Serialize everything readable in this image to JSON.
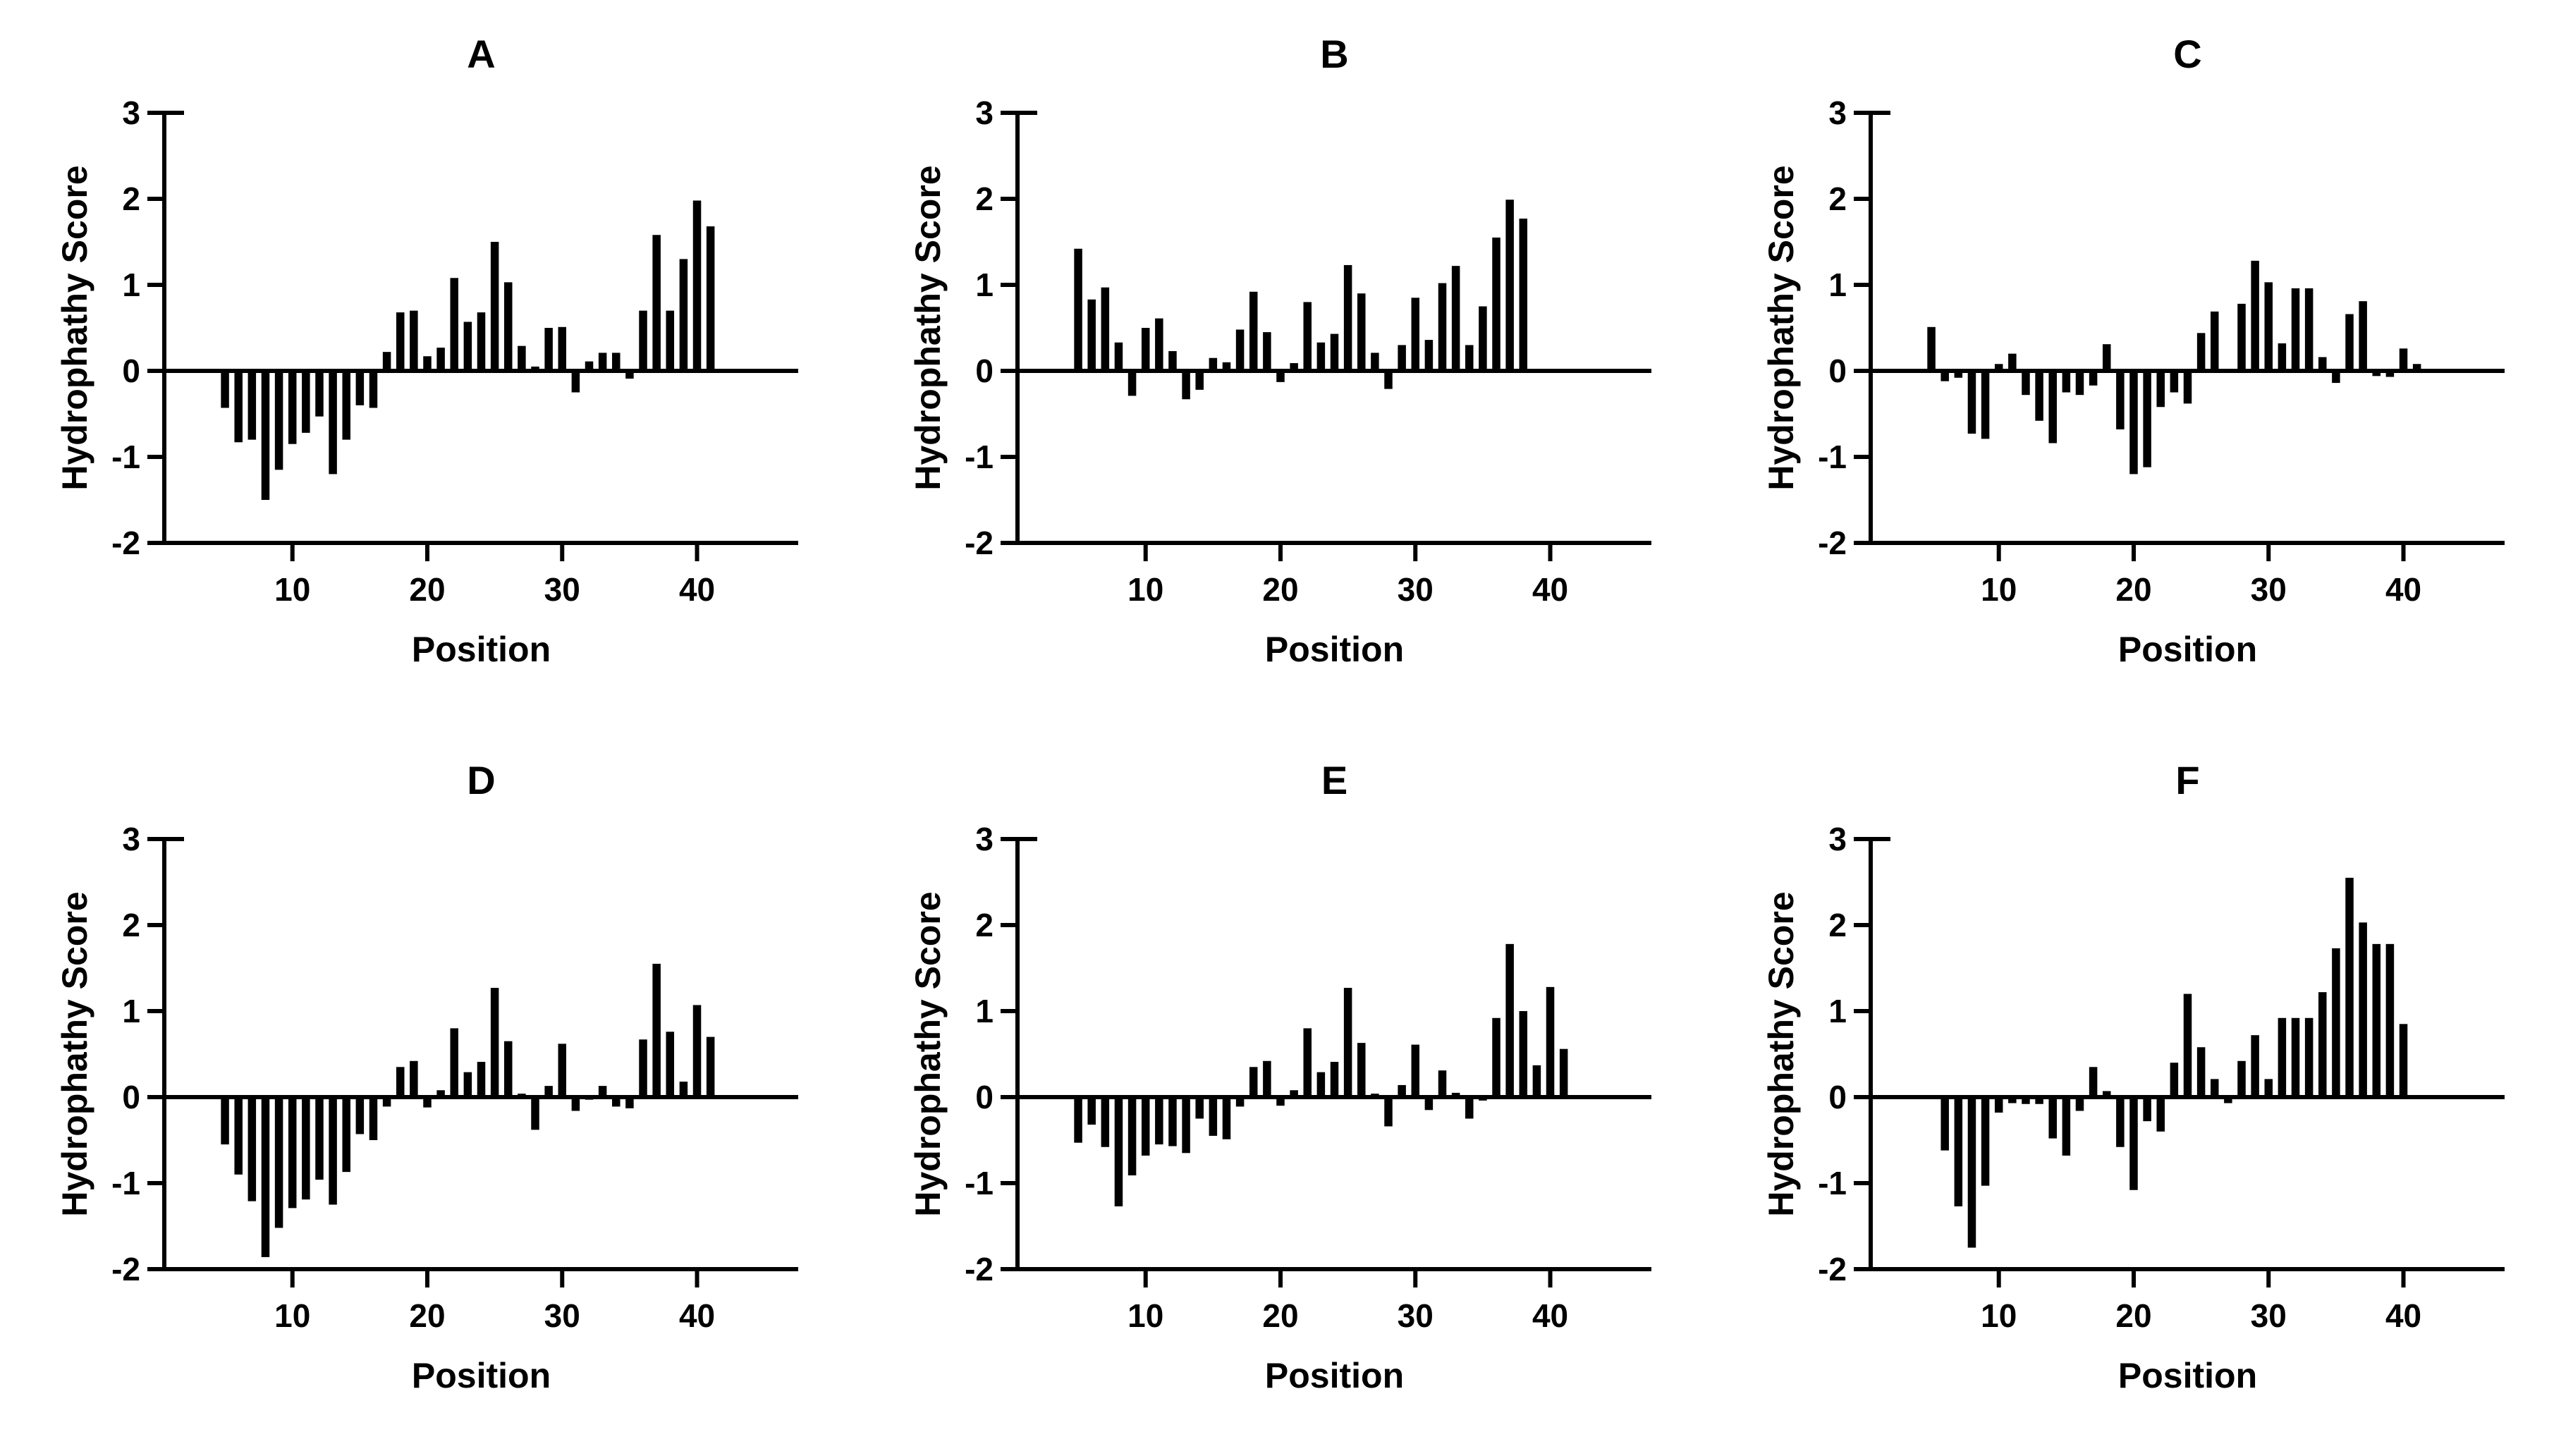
{
  "page": {
    "background_color": "#ffffff",
    "foreground_color": "#000000"
  },
  "chart_data": [
    {
      "id": "A",
      "type": "bar",
      "title": "A",
      "xlabel": "Position",
      "ylabel": "Hydrophathy Score",
      "ylim": [
        -2,
        3
      ],
      "yticks": [
        3,
        2,
        1,
        0,
        -1,
        -2
      ],
      "xticks": [
        10,
        20,
        30,
        40
      ],
      "xlim": [
        0.5,
        47.5
      ],
      "grid": false,
      "legend": null,
      "bar_color": "#000000",
      "x_start": 5,
      "x_end": 41,
      "values": [
        -0.43,
        -0.83,
        -0.8,
        -1.5,
        -1.15,
        -0.85,
        -0.72,
        -0.53,
        -1.2,
        -0.8,
        -0.4,
        -0.43,
        0.22,
        0.68,
        0.7,
        0.17,
        0.27,
        1.08,
        0.57,
        0.68,
        1.5,
        1.03,
        0.29,
        0.05,
        0.5,
        0.51,
        -0.25,
        0.11,
        0.21,
        0.21,
        -0.09,
        0.7,
        1.58,
        0.7,
        1.3,
        1.98,
        1.68
      ]
    },
    {
      "id": "B",
      "type": "bar",
      "title": "B",
      "xlabel": "Position",
      "ylabel": "Hydrophathy Score",
      "ylim": [
        -2,
        3
      ],
      "yticks": [
        3,
        2,
        1,
        0,
        -1,
        -2
      ],
      "xticks": [
        10,
        20,
        30,
        40
      ],
      "xlim": [
        0.5,
        47.5
      ],
      "grid": false,
      "legend": null,
      "bar_color": "#000000",
      "x_start": 5,
      "x_end": 38,
      "values": [
        1.42,
        0.83,
        0.97,
        0.33,
        -0.29,
        0.5,
        0.61,
        0.23,
        -0.33,
        -0.22,
        0.15,
        0.1,
        0.48,
        0.92,
        0.45,
        -0.13,
        0.09,
        0.8,
        0.33,
        0.43,
        1.23,
        0.9,
        0.21,
        -0.21,
        0.3,
        0.85,
        0.36,
        1.02,
        1.22,
        0.3,
        0.75,
        1.55,
        1.99,
        1.77
      ]
    },
    {
      "id": "C",
      "type": "bar",
      "title": "C",
      "xlabel": "Position",
      "ylabel": "Hydrophathy Score",
      "ylim": [
        -2,
        3
      ],
      "yticks": [
        3,
        2,
        1,
        0,
        -1,
        -2
      ],
      "xticks": [
        10,
        20,
        30,
        40
      ],
      "xlim": [
        0.5,
        47.5
      ],
      "grid": false,
      "legend": null,
      "bar_color": "#000000",
      "x_start": 5,
      "x_end": 41,
      "values": [
        0.51,
        -0.12,
        -0.08,
        -0.73,
        -0.79,
        0.08,
        0.2,
        -0.28,
        -0.58,
        -0.84,
        -0.25,
        -0.28,
        -0.17,
        0.31,
        -0.68,
        -1.2,
        -1.12,
        -0.42,
        -0.25,
        -0.38,
        0.44,
        0.69,
        0.0,
        0.78,
        1.28,
        1.03,
        0.32,
        0.96,
        0.96,
        0.16,
        -0.14,
        0.66,
        0.81,
        -0.06,
        -0.07,
        0.26,
        0.08
      ]
    },
    {
      "id": "D",
      "type": "bar",
      "title": "D",
      "xlabel": "Position",
      "ylabel": "Hydrophathy Score",
      "ylim": [
        -2,
        3
      ],
      "yticks": [
        3,
        2,
        1,
        0,
        -1,
        -2
      ],
      "xticks": [
        10,
        20,
        30,
        40
      ],
      "xlim": [
        0.5,
        47.5
      ],
      "grid": false,
      "legend": null,
      "bar_color": "#000000",
      "x_start": 5,
      "x_end": 41,
      "values": [
        -0.55,
        -0.9,
        -1.21,
        -1.86,
        -1.52,
        -1.29,
        -1.19,
        -0.96,
        -1.25,
        -0.87,
        -0.43,
        -0.5,
        -0.11,
        0.35,
        0.42,
        -0.12,
        0.08,
        0.8,
        0.29,
        0.41,
        1.27,
        0.65,
        0.04,
        -0.38,
        0.13,
        0.62,
        -0.16,
        -0.03,
        0.13,
        -0.11,
        -0.13,
        0.67,
        1.55,
        0.76,
        0.18,
        1.07,
        0.7
      ]
    },
    {
      "id": "E",
      "type": "bar",
      "title": "E",
      "xlabel": "Position",
      "ylabel": "Hydrophathy Score",
      "ylim": [
        -2,
        3
      ],
      "yticks": [
        3,
        2,
        1,
        0,
        -1,
        -2
      ],
      "xticks": [
        10,
        20,
        30,
        40
      ],
      "xlim": [
        0.5,
        47.5
      ],
      "grid": false,
      "legend": null,
      "bar_color": "#000000",
      "x_start": 5,
      "x_end": 41,
      "values": [
        -0.53,
        -0.32,
        -0.58,
        -1.27,
        -0.91,
        -0.68,
        -0.55,
        -0.57,
        -0.65,
        -0.25,
        -0.45,
        -0.49,
        -0.11,
        0.35,
        0.42,
        -0.1,
        0.08,
        0.8,
        0.29,
        0.41,
        1.27,
        0.63,
        0.04,
        -0.34,
        0.14,
        0.61,
        -0.15,
        0.31,
        0.05,
        -0.25,
        -0.04,
        0.92,
        1.78,
        1.0,
        0.37,
        1.28,
        0.56
      ]
    },
    {
      "id": "F",
      "type": "bar",
      "title": "F",
      "xlabel": "Position",
      "ylabel": "Hydrophathy Score",
      "ylim": [
        -2,
        3
      ],
      "yticks": [
        3,
        2,
        1,
        0,
        -1,
        -2
      ],
      "xticks": [
        10,
        20,
        30,
        40
      ],
      "xlim": [
        0.5,
        47.5
      ],
      "grid": false,
      "legend": null,
      "bar_color": "#000000",
      "x_start": 5,
      "x_end": 40,
      "values": [
        0.02,
        -0.62,
        -1.27,
        -1.75,
        -1.03,
        -0.18,
        -0.07,
        -0.08,
        -0.08,
        -0.48,
        -0.68,
        -0.16,
        0.35,
        0.07,
        -0.58,
        -1.08,
        -0.28,
        -0.4,
        0.4,
        1.2,
        0.58,
        0.21,
        -0.07,
        0.42,
        0.72,
        0.21,
        0.92,
        0.92,
        0.92,
        1.22,
        1.73,
        2.55,
        2.03,
        1.78,
        1.78,
        0.85
      ]
    }
  ]
}
